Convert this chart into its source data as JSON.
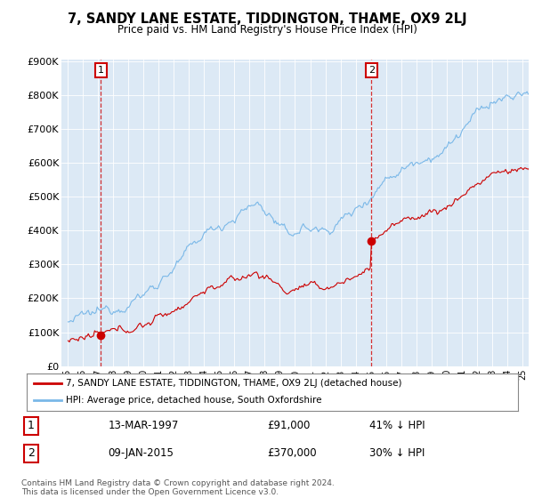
{
  "title": "7, SANDY LANE ESTATE, TIDDINGTON, THAME, OX9 2LJ",
  "subtitle": "Price paid vs. HM Land Registry's House Price Index (HPI)",
  "bg_color": "#dce9f5",
  "hpi_color": "#7ab8e8",
  "price_color": "#cc0000",
  "ylim": [
    0,
    900000
  ],
  "yticks": [
    0,
    100000,
    200000,
    300000,
    400000,
    500000,
    600000,
    700000,
    800000,
    900000
  ],
  "ytick_labels": [
    "£0",
    "£100K",
    "£200K",
    "£300K",
    "£400K",
    "£500K",
    "£600K",
    "£700K",
    "£800K",
    "£900K"
  ],
  "purchase1_year": 1997.2,
  "purchase1_price": 91000,
  "purchase1_label": "1",
  "purchase2_year": 2015.03,
  "purchase2_price": 370000,
  "purchase2_label": "2",
  "legend_line1": "7, SANDY LANE ESTATE, TIDDINGTON, THAME, OX9 2LJ (detached house)",
  "legend_line2": "HPI: Average price, detached house, South Oxfordshire",
  "footer1": "Contains HM Land Registry data © Crown copyright and database right 2024.",
  "footer2": "This data is licensed under the Open Government Licence v3.0.",
  "table_row1": [
    "1",
    "13-MAR-1997",
    "£91,000",
    "41% ↓ HPI"
  ],
  "table_row2": [
    "2",
    "09-JAN-2015",
    "£370,000",
    "30% ↓ HPI"
  ]
}
